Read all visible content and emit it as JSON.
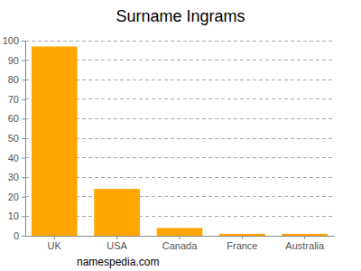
{
  "chart_data": {
    "type": "bar",
    "title": "Surname Ingrams",
    "categories": [
      "UK",
      "USA",
      "Canada",
      "France",
      "Australia"
    ],
    "values": [
      97,
      24,
      4,
      1,
      1
    ],
    "color": "#ffa500",
    "ylim": [
      0,
      100
    ],
    "yticks": [
      0,
      10,
      20,
      30,
      40,
      50,
      60,
      70,
      80,
      90,
      100
    ],
    "grid": true,
    "annotations": [
      "namespedia.com"
    ]
  }
}
